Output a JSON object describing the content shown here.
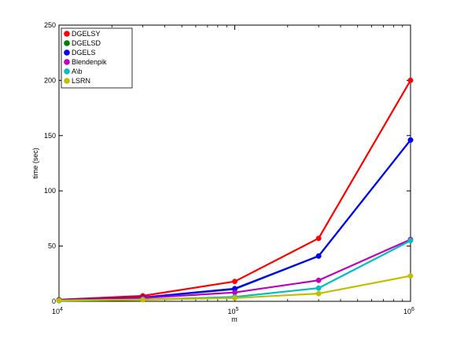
{
  "chart_data": {
    "type": "line",
    "xlabel": "m",
    "ylabel": "time (sec)",
    "x": [
      10000,
      30000,
      100000,
      300000,
      1000000
    ],
    "xscale": "log",
    "xlim": [
      10000,
      1000000
    ],
    "ylim": [
      0,
      250
    ],
    "xticks": [
      {
        "base": "10",
        "exp": "4",
        "value": 10000
      },
      {
        "base": "10",
        "exp": "5",
        "value": 100000
      },
      {
        "base": "10",
        "exp": "6",
        "value": 1000000
      }
    ],
    "yticks": [
      "0",
      "50",
      "100",
      "150",
      "200",
      "250"
    ],
    "grid": false,
    "legend_position": "top-left",
    "series": [
      {
        "name": "DGELSY",
        "color": "#ff0000",
        "values": [
          1.5,
          5,
          18,
          57,
          200
        ]
      },
      {
        "name": "DGELSD",
        "color": "#008000",
        "values": [
          1.2,
          3.5,
          11,
          41,
          146
        ]
      },
      {
        "name": "DGELS",
        "color": "#0000ff",
        "values": [
          1.2,
          3.5,
          11.5,
          41,
          146
        ]
      },
      {
        "name": "Blendenpik",
        "color": "#bf00bf",
        "values": [
          1,
          3,
          8,
          19,
          56
        ]
      },
      {
        "name": "A\\b",
        "color": "#00bfbf",
        "values": [
          0.5,
          1.5,
          4,
          12,
          55
        ]
      },
      {
        "name": "LSRN",
        "color": "#bfbf00",
        "values": [
          0.8,
          1.5,
          3,
          7,
          23
        ]
      }
    ]
  }
}
